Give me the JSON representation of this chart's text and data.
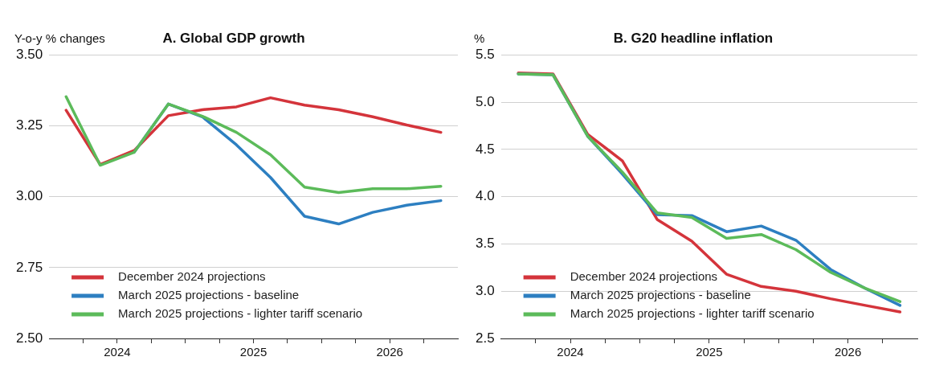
{
  "chart_data": [
    {
      "type": "line",
      "title": "A. Global GDP growth",
      "ylabel": "Y-o-y % changes",
      "x": [
        2024.125,
        2024.375,
        2024.625,
        2024.875,
        2025.125,
        2025.375,
        2025.625,
        2025.875,
        2026.125,
        2026.375,
        2026.625,
        2026.875
      ],
      "xlim": [
        2024,
        2027
      ],
      "xticks": [
        {
          "value": 2024.25,
          "label": null
        },
        {
          "value": 2024.5,
          "label": "2024"
        },
        {
          "value": 2024.75,
          "label": null
        },
        {
          "value": 2025,
          "label": null
        },
        {
          "value": 2025.25,
          "label": null
        },
        {
          "value": 2025.5,
          "label": "2025"
        },
        {
          "value": 2025.75,
          "label": null
        },
        {
          "value": 2026,
          "label": null
        },
        {
          "value": 2026.25,
          "label": null
        },
        {
          "value": 2026.5,
          "label": "2026"
        },
        {
          "value": 2026.75,
          "label": null
        }
      ],
      "ylim": [
        2.5,
        3.5
      ],
      "yticks": [
        {
          "value": 2.5,
          "label": "2.50"
        },
        {
          "value": 2.75,
          "label": "2.75"
        },
        {
          "value": 3,
          "label": "3.00"
        },
        {
          "value": 3.25,
          "label": "3.25"
        },
        {
          "value": 3.5,
          "label": "3.50"
        }
      ],
      "grid": "y",
      "legend": "bottom left",
      "line_style": "solid",
      "marker": "none",
      "series": [
        {
          "name": "December 2024 projections",
          "color": "#d4343b",
          "values": [
            3.305,
            3.114,
            3.163,
            3.286,
            3.307,
            3.317,
            3.349,
            3.323,
            3.307,
            3.282,
            3.253,
            3.227
          ]
        },
        {
          "name": "March 2025 projections - baseline",
          "color": "#2d7fc1",
          "values": [
            null,
            null,
            3.157,
            3.327,
            3.282,
            3.183,
            3.068,
            2.931,
            2.904,
            2.945,
            2.97,
            2.986
          ]
        },
        {
          "name": "March 2025 projections - lighter tariff scenario",
          "color": "#5cbb5a",
          "values": [
            3.353,
            3.111,
            3.157,
            3.327,
            3.284,
            3.227,
            3.148,
            3.034,
            3.015,
            3.028,
            3.028,
            3.037
          ]
        }
      ]
    },
    {
      "type": "line",
      "title": "B. G20 headline inflation",
      "ylabel": "%",
      "x": [
        2023.875,
        2024.125,
        2024.375,
        2024.625,
        2024.875,
        2025.125,
        2025.375,
        2025.625,
        2025.875,
        2026.125,
        2026.375,
        2026.625
      ],
      "xlim": [
        2023.75,
        2026.75
      ],
      "xticks": [
        {
          "value": 2024,
          "label": null
        },
        {
          "value": 2024.25,
          "label": "2024"
        },
        {
          "value": 2024.5,
          "label": null
        },
        {
          "value": 2024.75,
          "label": null
        },
        {
          "value": 2025,
          "label": null
        },
        {
          "value": 2025.25,
          "label": "2025"
        },
        {
          "value": 2025.5,
          "label": null
        },
        {
          "value": 2025.75,
          "label": null
        },
        {
          "value": 2026,
          "label": null
        },
        {
          "value": 2026.25,
          "label": "2026"
        },
        {
          "value": 2026.5,
          "label": null
        }
      ],
      "ylim": [
        2.5,
        5.5
      ],
      "yticks": [
        {
          "value": 2.5,
          "label": "2.5"
        },
        {
          "value": 3,
          "label": "3.0"
        },
        {
          "value": 3.5,
          "label": "3.5"
        },
        {
          "value": 4,
          "label": "4.0"
        },
        {
          "value": 4.5,
          "label": "4.5"
        },
        {
          "value": 5,
          "label": "5.0"
        },
        {
          "value": 5.5,
          "label": "5.5"
        }
      ],
      "grid": "y",
      "legend": "bottom left",
      "line_style": "solid",
      "marker": "none",
      "series": [
        {
          "name": "December 2024 projections",
          "color": "#d4343b",
          "values": [
            5.31,
            5.3,
            4.66,
            4.38,
            3.76,
            3.53,
            3.18,
            3.05,
            3.0,
            2.92,
            2.85,
            2.78
          ]
        },
        {
          "name": "March 2025 projections - baseline",
          "color": "#2d7fc1",
          "values": [
            5.3,
            5.29,
            4.64,
            4.24,
            3.81,
            3.8,
            3.63,
            3.69,
            3.54,
            3.23,
            3.03,
            2.85
          ]
        },
        {
          "name": "March 2025 projections - lighter tariff scenario",
          "color": "#5cbb5a",
          "values": [
            5.3,
            5.29,
            4.64,
            4.26,
            3.83,
            3.78,
            3.56,
            3.6,
            3.44,
            3.2,
            3.03,
            2.89
          ]
        }
      ]
    }
  ]
}
